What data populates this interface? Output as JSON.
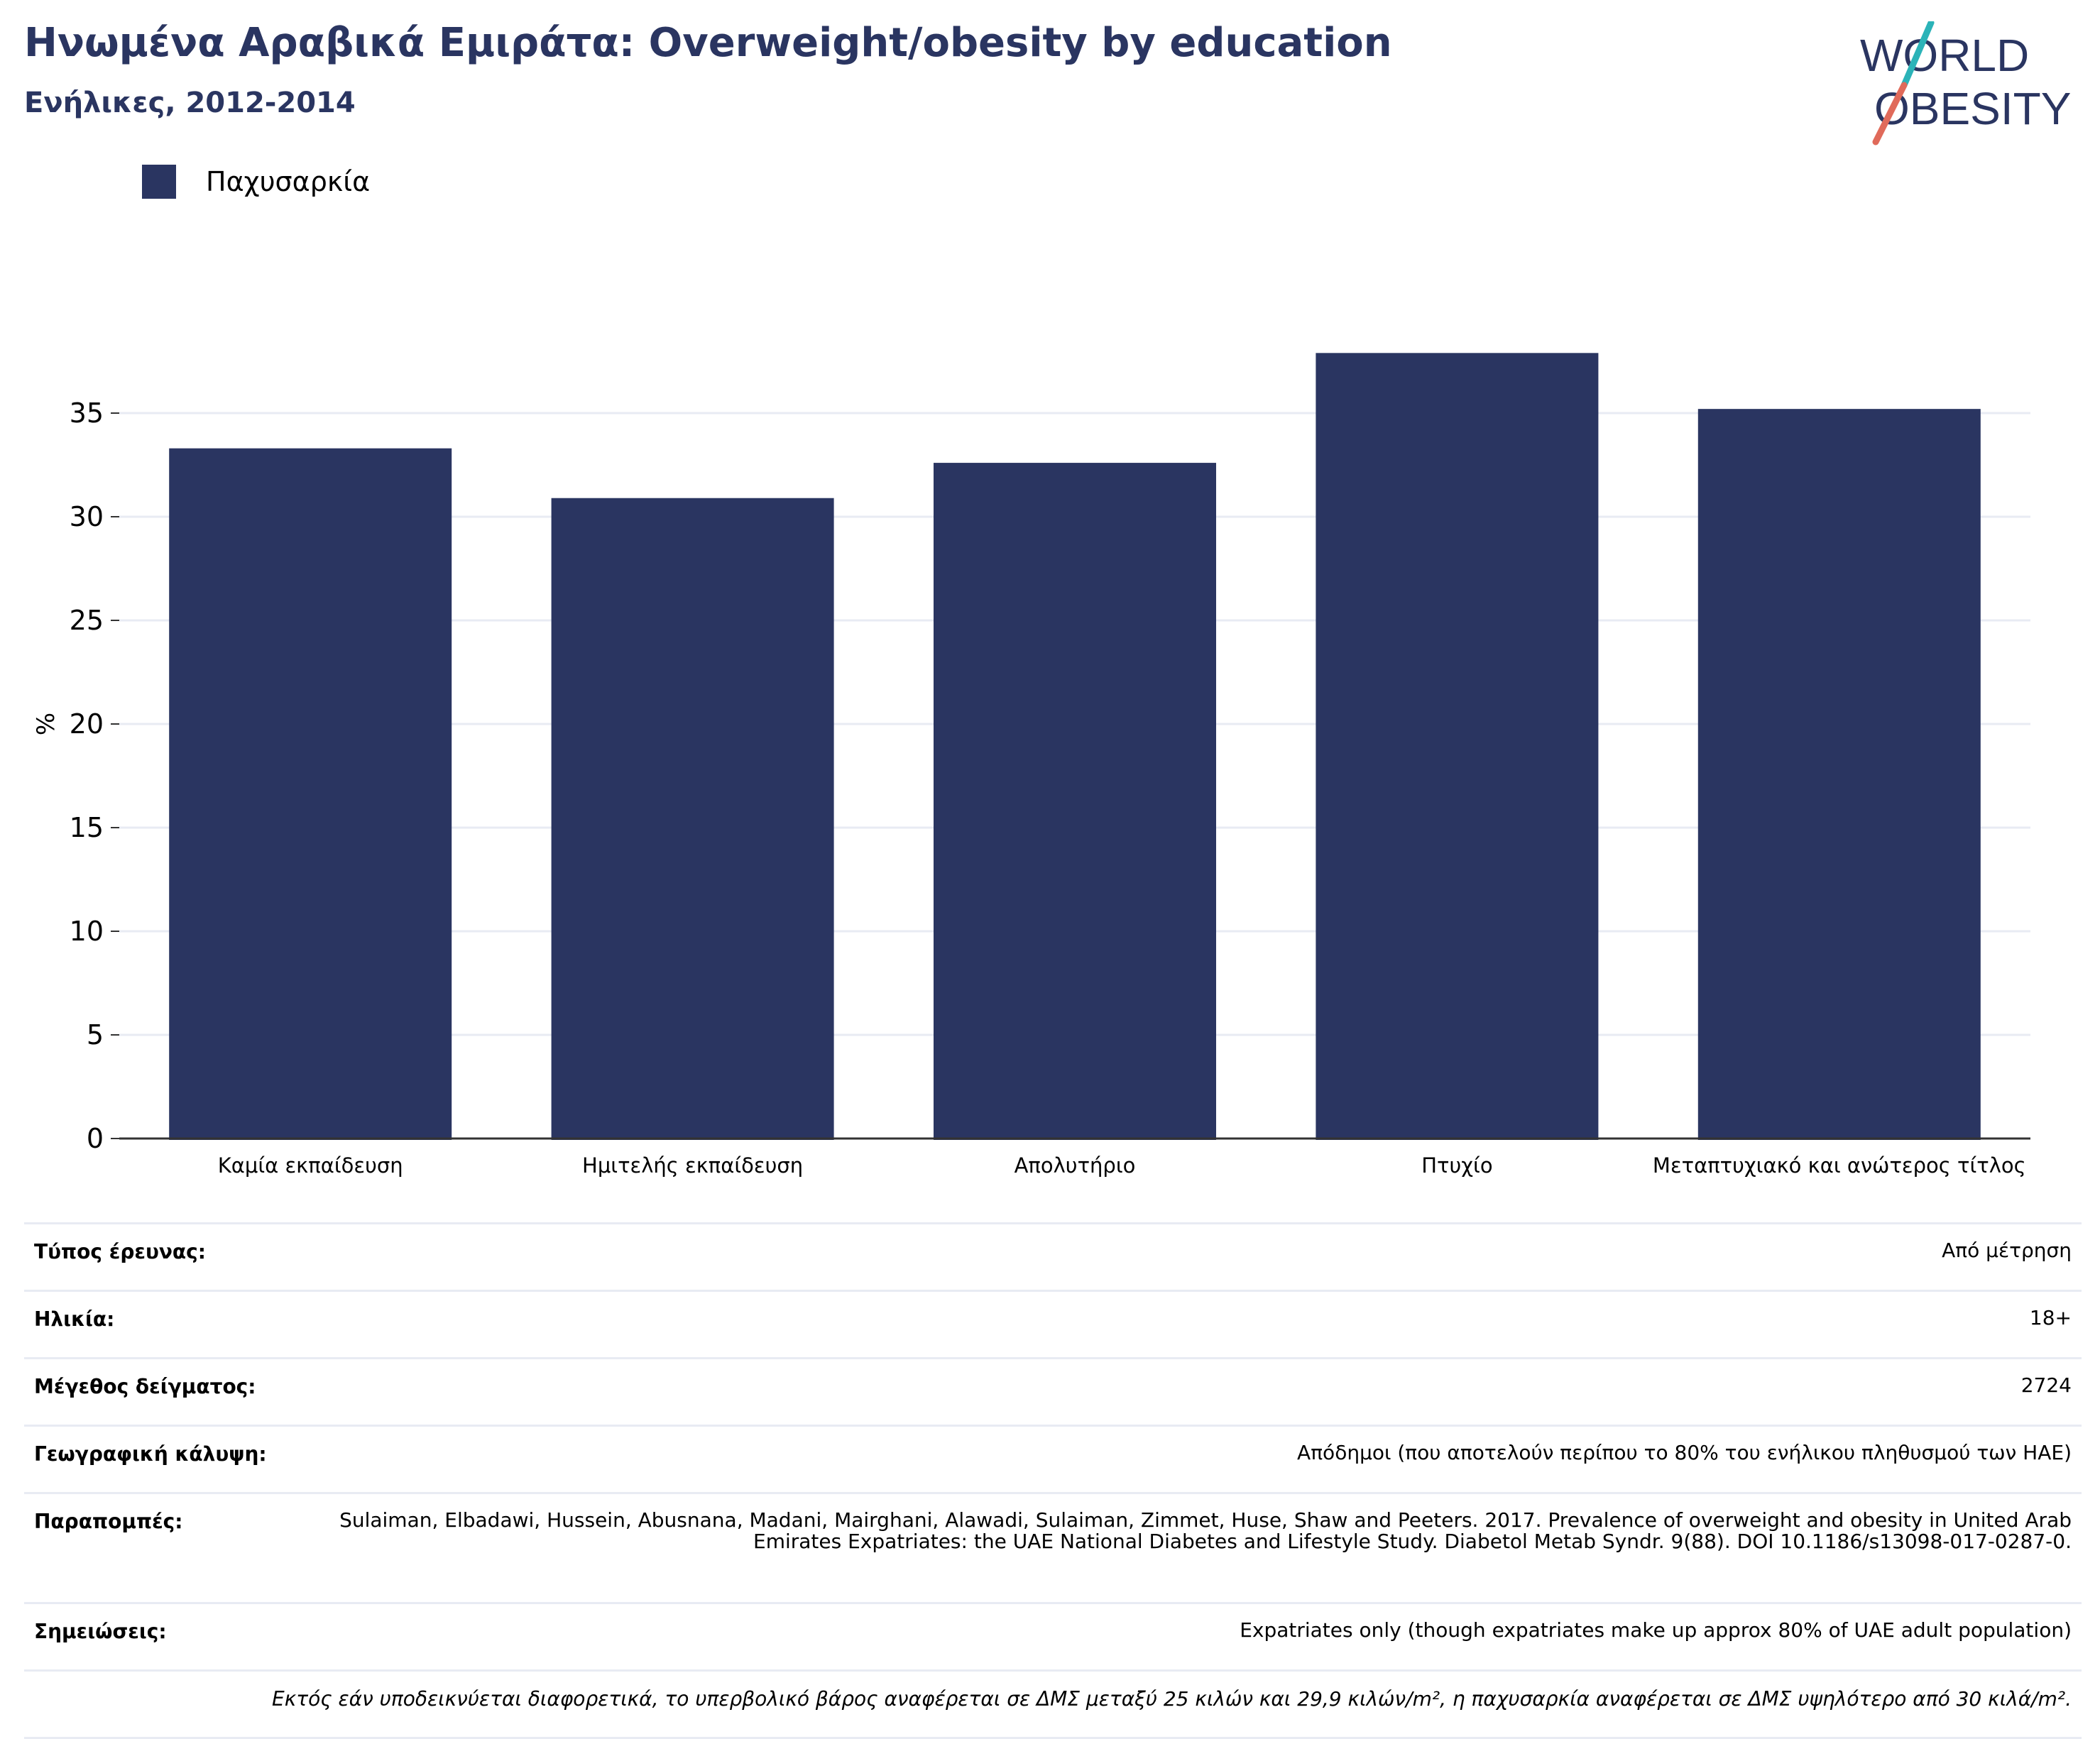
{
  "header": {
    "title": "Ηνωμένα Αραβικά Εμιράτα: Overweight/obesity by education",
    "subtitle": "Ενήλικες, 2012-2014"
  },
  "logo": {
    "line1": "WORLD",
    "line2": "OBESITY",
    "colors": {
      "text": "#2a3561",
      "slash_teal": "#2bb3b8",
      "slash_red": "#e06a5a"
    }
  },
  "colors": {
    "bar": "#2a3561",
    "grid": "#e8ebf3",
    "axis": "#333333"
  },
  "chart_data": {
    "type": "bar",
    "categories": [
      "Καμία εκπαίδευση",
      "Ημιτελής εκπαίδευση",
      "Απολυτήριο",
      "Πτυχίο",
      "Μεταπτυχιακό και ανώτερος τίτλος"
    ],
    "series": [
      {
        "name": "Παχυσαρκία",
        "values": [
          33.3,
          30.9,
          32.6,
          37.9,
          35.2
        ]
      }
    ],
    "ylabel": "%",
    "xlabel": "",
    "ylim": [
      0,
      40
    ],
    "yticks": [
      0,
      5,
      10,
      15,
      20,
      25,
      30,
      35
    ],
    "grid": true,
    "legend": "top-left"
  },
  "info": {
    "rows": [
      {
        "label": "Τύπος έρευνας:",
        "value": "Από μέτρηση"
      },
      {
        "label": "Ηλικία:",
        "value": "18+"
      },
      {
        "label": "Μέγεθος δείγματος:",
        "value": "2724"
      },
      {
        "label": "Γεωγραφική κάλυψη:",
        "value": "Απόδημοι (που αποτελούν περίπου το 80% του ενήλικου πληθυσμού των ΗΑΕ)"
      },
      {
        "label": "Παραπομπές:",
        "value": "Sulaiman, Elbadawi, Hussein, Abusnana, Madani, Mairghani, Alawadi, Sulaiman, Zimmet, Huse, Shaw and Peeters. 2017. Prevalence of overweight and obesity in United Arab Emirates Expatriates: the UAE National Diabetes and Lifestyle Study. Diabetol Metab Syndr. 9(88). DOI 10.1186/s13098-017-0287-0."
      },
      {
        "label": "Σημειώσεις:",
        "value": "Expatriates only (though expatriates make up approx 80% of UAE adult population)"
      }
    ],
    "footnote": "Εκτός εάν υποδεικνύεται διαφορετικά, το υπερβολικό βάρος αναφέρεται σε ΔΜΣ μεταξύ 25 κιλών και 29,9 κιλών/m², η παχυσαρκία αναφέρεται σε ΔΜΣ υψηλότερο από 30 κιλά/m²."
  }
}
